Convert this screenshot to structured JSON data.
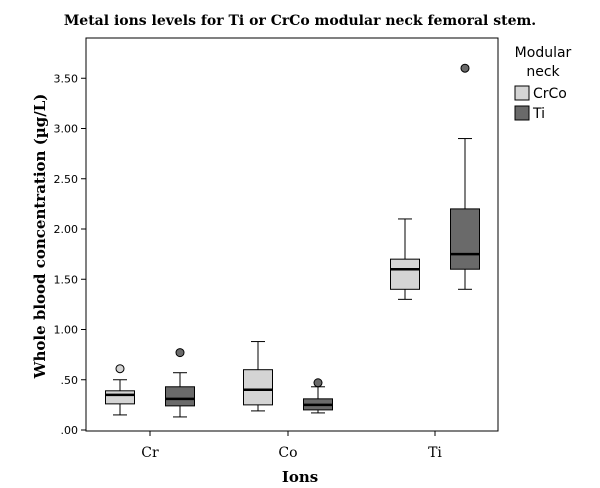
{
  "chart_data": {
    "type": "boxplot",
    "title": "Metal ions levels for Ti or CrCo modular neck femoral stem.",
    "xlabel": "Ions",
    "ylabel": "Whole blood concentration (µg/L)",
    "ylim": [
      0,
      3.7
    ],
    "yticks": [
      0,
      0.5,
      1.0,
      1.5,
      2.0,
      2.5,
      3.0,
      3.5
    ],
    "ytick_labels": [
      ".00",
      ".50",
      "1.00",
      "1.50",
      "2.00",
      "2.50",
      "3.00",
      "3.50"
    ],
    "categories": [
      "Cr",
      "Co",
      "Ti"
    ],
    "grid": false,
    "legend": {
      "title": "Modular neck",
      "title_lines": [
        "Modular",
        "neck"
      ],
      "position": "right"
    },
    "series": [
      {
        "name": "CrCo",
        "color": "#d4d4d4",
        "boxes": [
          {
            "min": 0.15,
            "q1": 0.26,
            "median": 0.35,
            "q3": 0.39,
            "max": 0.5,
            "outliers": [
              0.61
            ]
          },
          {
            "min": 0.19,
            "q1": 0.25,
            "median": 0.4,
            "q3": 0.6,
            "max": 0.88,
            "outliers": []
          },
          {
            "min": 1.3,
            "q1": 1.4,
            "median": 1.6,
            "q3": 1.7,
            "max": 2.1,
            "outliers": []
          }
        ]
      },
      {
        "name": "Ti",
        "color": "#6a6a6a",
        "boxes": [
          {
            "min": 0.13,
            "q1": 0.24,
            "median": 0.31,
            "q3": 0.43,
            "max": 0.57,
            "outliers": [
              0.77
            ]
          },
          {
            "min": 0.17,
            "q1": 0.2,
            "median": 0.25,
            "q3": 0.31,
            "max": 0.43,
            "outliers": [
              0.47
            ]
          },
          {
            "min": 1.4,
            "q1": 1.6,
            "median": 1.75,
            "q3": 2.2,
            "max": 2.9,
            "outliers": [
              3.6
            ]
          }
        ]
      }
    ]
  }
}
